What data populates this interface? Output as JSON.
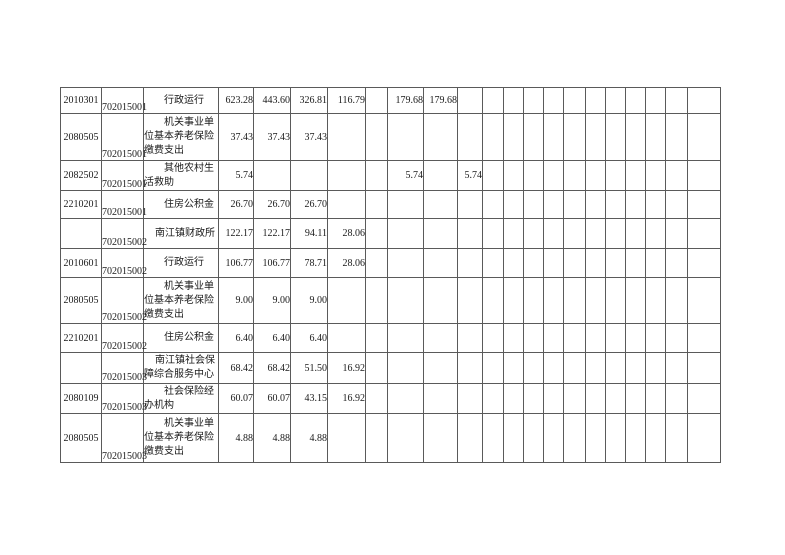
{
  "document": {
    "background_color": "#ffffff",
    "text_color": "#1a1a1a",
    "grid_color": "#5a5a5a",
    "description": "budget expenditure table fragment"
  },
  "table": {
    "value_column_count": 19,
    "rows": [
      {
        "code": "2010301",
        "unit_code": "702015001",
        "name_lines": [
          "行政运行"
        ],
        "values": [
          "623.28",
          "443.60",
          "326.81",
          "116.79",
          "",
          "179.68",
          "179.68",
          "",
          "",
          "",
          "",
          "",
          "",
          "",
          "",
          "",
          "",
          "",
          ""
        ]
      },
      {
        "code": "2080505",
        "unit_code": "702015001",
        "name_lines": [
          "机关事业单",
          "位基本养老保险",
          "缴费支出"
        ],
        "values": [
          "37.43",
          "37.43",
          "37.43",
          "",
          "",
          "",
          "",
          "",
          "",
          "",
          "",
          "",
          "",
          "",
          "",
          "",
          "",
          "",
          ""
        ]
      },
      {
        "code": "2082502",
        "unit_code": "702015001",
        "name_lines": [
          "其他农村生",
          "活救助"
        ],
        "values": [
          "5.74",
          "",
          "",
          "",
          "",
          "5.74",
          "",
          "5.74",
          "",
          "",
          "",
          "",
          "",
          "",
          "",
          "",
          "",
          "",
          ""
        ]
      },
      {
        "code": "2210201",
        "unit_code": "702015001",
        "name_lines": [
          "住房公积金"
        ],
        "values": [
          "26.70",
          "26.70",
          "26.70",
          "",
          "",
          "",
          "",
          "",
          "",
          "",
          "",
          "",
          "",
          "",
          "",
          "",
          "",
          "",
          ""
        ]
      },
      {
        "code": "",
        "unit_code": "702015002",
        "name_lines": [
          "南江镇财政所"
        ],
        "values": [
          "122.17",
          "122.17",
          "94.11",
          "28.06",
          "",
          "",
          "",
          "",
          "",
          "",
          "",
          "",
          "",
          "",
          "",
          "",
          "",
          "",
          ""
        ]
      },
      {
        "code": "2010601",
        "unit_code": "702015002",
        "name_lines": [
          "行政运行"
        ],
        "values": [
          "106.77",
          "106.77",
          "78.71",
          "28.06",
          "",
          "",
          "",
          "",
          "",
          "",
          "",
          "",
          "",
          "",
          "",
          "",
          "",
          "",
          ""
        ]
      },
      {
        "code": "2080505",
        "unit_code": "702015002",
        "name_lines": [
          "机关事业单",
          "位基本养老保险",
          "缴费支出"
        ],
        "values": [
          "9.00",
          "9.00",
          "9.00",
          "",
          "",
          "",
          "",
          "",
          "",
          "",
          "",
          "",
          "",
          "",
          "",
          "",
          "",
          "",
          ""
        ]
      },
      {
        "code": "2210201",
        "unit_code": "702015002",
        "name_lines": [
          "住房公积金"
        ],
        "values": [
          "6.40",
          "6.40",
          "6.40",
          "",
          "",
          "",
          "",
          "",
          "",
          "",
          "",
          "",
          "",
          "",
          "",
          "",
          "",
          "",
          ""
        ]
      },
      {
        "code": "",
        "unit_code": "702015003",
        "name_lines": [
          "南江镇社会保",
          "障综合服务中心"
        ],
        "values": [
          "68.42",
          "68.42",
          "51.50",
          "16.92",
          "",
          "",
          "",
          "",
          "",
          "",
          "",
          "",
          "",
          "",
          "",
          "",
          "",
          "",
          ""
        ]
      },
      {
        "code": "2080109",
        "unit_code": "702015003",
        "name_lines": [
          "社会保险经",
          "办机构"
        ],
        "values": [
          "60.07",
          "60.07",
          "43.15",
          "16.92",
          "",
          "",
          "",
          "",
          "",
          "",
          "",
          "",
          "",
          "",
          "",
          "",
          "",
          "",
          ""
        ]
      },
      {
        "code": "2080505",
        "unit_code": "702015003",
        "name_lines": [
          "机关事业单",
          "位基本养老保险",
          "缴费支出"
        ],
        "values": [
          "4.88",
          "4.88",
          "4.88",
          "",
          "",
          "",
          "",
          "",
          "",
          "",
          "",
          "",
          "",
          "",
          "",
          "",
          "",
          "",
          ""
        ]
      }
    ]
  }
}
